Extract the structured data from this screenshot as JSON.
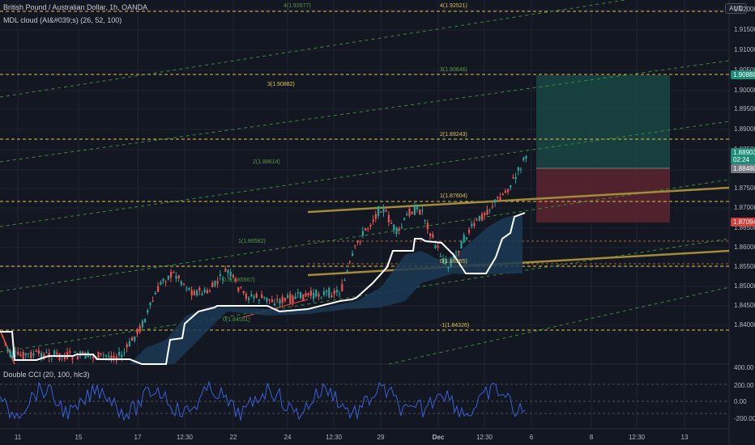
{
  "header": {
    "title": "British Pound / Australian Dollar, 1h, OANDA",
    "indicator": "MDL cloud (AI&#039;s) (26, 52, 100)",
    "subpane_title": "Double CCI (20, 100, hlc3)",
    "symbol_badge": "AUD"
  },
  "price_axis": {
    "ticks": [
      "1.92000",
      "1.91500",
      "1.91000",
      "1.90500",
      "1.90000",
      "1.89500",
      "1.89000",
      "1.88500",
      "1.88000",
      "1.87500",
      "1.87000",
      "1.86500",
      "1.86000",
      "1.85500",
      "1.85000",
      "1.84500",
      "1.84000"
    ],
    "labels": [
      {
        "text": "1.90888",
        "color": "#1e8c78"
      },
      {
        "text": "1.88903",
        "sub": "02:24",
        "color": "#1e8c78"
      },
      {
        "text": "1.88480",
        "color": "#787b86"
      },
      {
        "text": "1.87094",
        "color": "#d4403c"
      }
    ]
  },
  "cci_axis": {
    "ticks": [
      "400.00",
      "200.00",
      "0.00",
      "-200.00"
    ]
  },
  "time_axis": {
    "ticks": [
      "11",
      "15",
      "17",
      "12:30",
      "22",
      "24",
      "12:30",
      "29",
      "Dec",
      "12:30",
      "6",
      "8",
      "12:30",
      "13"
    ]
  },
  "levels": [
    {
      "text": "4(1.92677)",
      "color": "#5a9a4a"
    },
    {
      "text": "4(1.92521)",
      "color": "#e3c24f"
    },
    {
      "text": "3(1.90882)",
      "color": "#e3c24f"
    },
    {
      "text": "3(1.90646)",
      "color": "#5a9a4a"
    },
    {
      "text": "2(1.89243)",
      "color": "#e3c24f"
    },
    {
      "text": "2(1.88614)",
      "color": "#5a9a4a"
    },
    {
      "text": "1(1.87604)",
      "color": "#e3c24f"
    },
    {
      "text": "1(1.86582)",
      "color": "#5a9a4a"
    },
    {
      "text": "0.5(1.85567)",
      "color": "#5a9a4a"
    },
    {
      "text": "0(1.86965)",
      "color": "#e3c24f"
    },
    {
      "text": "0(1.84551)",
      "color": "#5a9a4a"
    },
    {
      "text": "-1(1.84326)",
      "color": "#e3c24f"
    }
  ],
  "colors": {
    "bg": "#131722",
    "grid": "#1f2330",
    "up": "#26a69a",
    "down": "#ef5350",
    "cloud": "#1c3a55",
    "cci": "#3a5fd6",
    "trend": "#a38b3a"
  }
}
